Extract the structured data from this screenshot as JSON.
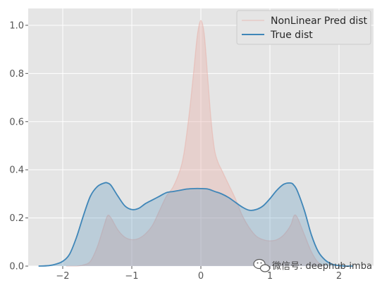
{
  "chart_data": {
    "type": "area",
    "title": "",
    "xlabel": "",
    "ylabel": "",
    "xlim": [
      -2.5,
      2.5
    ],
    "ylim": [
      0,
      1.07
    ],
    "x_ticks": [
      -2,
      -1,
      0,
      1,
      2
    ],
    "x_tick_labels": [
      "−2",
      "−1",
      "0",
      "1",
      "2"
    ],
    "y_ticks": [
      0.0,
      0.2,
      0.4,
      0.6,
      0.8,
      1.0
    ],
    "y_tick_labels": [
      "0.0",
      "0.2",
      "0.4",
      "0.6",
      "0.8",
      "1.0"
    ],
    "grid": true,
    "legend_position": "top-right",
    "series": [
      {
        "name": "NonLinear Pred dist",
        "color": "#e8a9a0",
        "x": [
          -1.95,
          -1.8,
          -1.7,
          -1.6,
          -1.5,
          -1.4,
          -1.35,
          -1.3,
          -1.2,
          -1.1,
          -1.0,
          -0.9,
          -0.8,
          -0.7,
          -0.6,
          -0.5,
          -0.4,
          -0.3,
          -0.25,
          -0.2,
          -0.15,
          -0.1,
          -0.05,
          0.0,
          0.05,
          0.1,
          0.15,
          0.2,
          0.25,
          0.3,
          0.4,
          0.5,
          0.6,
          0.7,
          0.8,
          0.9,
          1.0,
          1.1,
          1.2,
          1.3,
          1.35,
          1.4,
          1.5,
          1.6,
          1.7,
          1.8
        ],
        "values": [
          0.0,
          0.0,
          0.005,
          0.02,
          0.08,
          0.17,
          0.21,
          0.2,
          0.15,
          0.12,
          0.11,
          0.115,
          0.135,
          0.17,
          0.23,
          0.29,
          0.33,
          0.4,
          0.46,
          0.56,
          0.68,
          0.82,
          0.96,
          1.02,
          0.96,
          0.78,
          0.6,
          0.48,
          0.43,
          0.4,
          0.34,
          0.28,
          0.21,
          0.16,
          0.125,
          0.11,
          0.105,
          0.11,
          0.13,
          0.17,
          0.21,
          0.2,
          0.13,
          0.06,
          0.015,
          0.0
        ]
      },
      {
        "name": "True dist",
        "color": "#3f86b8",
        "x": [
          -2.35,
          -2.2,
          -2.1,
          -2.0,
          -1.9,
          -1.8,
          -1.7,
          -1.6,
          -1.5,
          -1.4,
          -1.35,
          -1.3,
          -1.2,
          -1.1,
          -1.0,
          -0.9,
          -0.8,
          -0.7,
          -0.6,
          -0.5,
          -0.4,
          -0.3,
          -0.2,
          -0.1,
          0.0,
          0.1,
          0.2,
          0.3,
          0.4,
          0.5,
          0.6,
          0.7,
          0.8,
          0.9,
          1.0,
          1.1,
          1.2,
          1.3,
          1.35,
          1.4,
          1.5,
          1.6,
          1.7,
          1.8,
          1.9,
          2.0,
          2.1,
          2.2
        ],
        "values": [
          0.0,
          0.002,
          0.008,
          0.02,
          0.05,
          0.12,
          0.21,
          0.29,
          0.33,
          0.345,
          0.345,
          0.335,
          0.29,
          0.25,
          0.235,
          0.24,
          0.26,
          0.275,
          0.29,
          0.305,
          0.31,
          0.315,
          0.32,
          0.322,
          0.322,
          0.32,
          0.31,
          0.3,
          0.285,
          0.265,
          0.245,
          0.232,
          0.235,
          0.25,
          0.28,
          0.315,
          0.34,
          0.345,
          0.335,
          0.31,
          0.23,
          0.13,
          0.06,
          0.025,
          0.008,
          0.002,
          0.0,
          0.0
        ]
      }
    ]
  },
  "watermark": {
    "text": "微信号: deephub-imba",
    "icon": "wechat-icon"
  }
}
